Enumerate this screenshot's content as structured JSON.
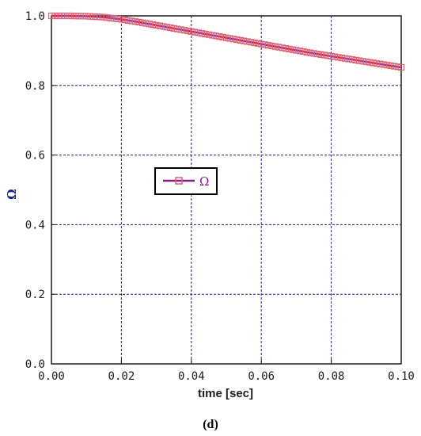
{
  "chart_data": {
    "type": "line",
    "xlabel": "time [sec]",
    "ylabel": "Ω",
    "xlim": [
      0.0,
      0.1
    ],
    "ylim": [
      0.0,
      1.0
    ],
    "x_ticks": [
      "0.00",
      "0.02",
      "0.04",
      "0.06",
      "0.08",
      "0.10"
    ],
    "y_ticks": [
      "0.0",
      "0.2",
      "0.4",
      "0.6",
      "0.8",
      "1.0"
    ],
    "grid": true,
    "legend_position": "center-left",
    "series": [
      {
        "name": "Ω",
        "line_color": "#8b1a8b",
        "marker_color": "#e06070",
        "x": [
          0.0,
          0.005,
          0.01,
          0.015,
          0.02,
          0.025,
          0.03,
          0.035,
          0.04,
          0.045,
          0.05,
          0.055,
          0.06,
          0.065,
          0.07,
          0.075,
          0.08,
          0.085,
          0.09,
          0.095,
          0.1
        ],
        "values": [
          1.0,
          1.0,
          0.999,
          0.996,
          0.99,
          0.982,
          0.973,
          0.964,
          0.955,
          0.946,
          0.937,
          0.928,
          0.919,
          0.91,
          0.901,
          0.892,
          0.884,
          0.876,
          0.868,
          0.86,
          0.852
        ]
      }
    ]
  },
  "caption": "(d)",
  "colors": {
    "grid": "#1a237e",
    "frame": "#1c1c1c"
  }
}
